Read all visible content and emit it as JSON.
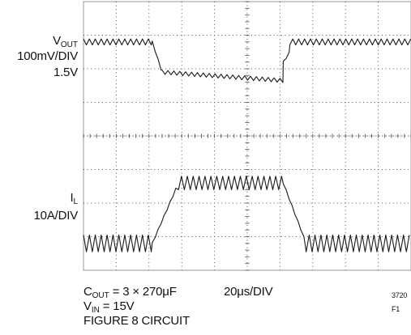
{
  "chart_data": {
    "type": "line",
    "title": "",
    "grid": true,
    "x_scale": "20μs/DIV",
    "x_divisions": 10,
    "y_divisions": 8,
    "series": [
      {
        "name": "VOUT",
        "scale": "100mV/DIV",
        "offset": "1.5V",
        "segments": [
          {
            "from_div": 0.0,
            "to_div": 2.1,
            "level_div": 6.8,
            "ripple_div": 0.18
          },
          {
            "from_div": 2.1,
            "to_div": 2.4,
            "level_start_div": 6.8,
            "level_end_div": 5.9
          },
          {
            "from_div": 2.4,
            "to_div": 6.1,
            "level_start_div": 5.9,
            "level_end_div": 5.65,
            "ripple_div": 0.12
          },
          {
            "from_div": 6.1,
            "to_div": 6.3,
            "level_start_div": 6.2,
            "level_end_div": 6.5
          },
          {
            "from_div": 6.3,
            "to_div": 10.0,
            "level_div": 6.8,
            "ripple_div": 0.18
          }
        ]
      },
      {
        "name": "IL",
        "scale": "10A/DIV",
        "segments": [
          {
            "from_div": 0.0,
            "to_div": 2.1,
            "level_div": 0.8,
            "ripple_div": 0.5
          },
          {
            "from_div": 2.1,
            "to_div": 2.9,
            "level_start_div": 0.8,
            "level_end_div": 2.6
          },
          {
            "from_div": 2.9,
            "to_div": 6.1,
            "level_div": 2.6,
            "ripple_div": 0.4
          },
          {
            "from_div": 6.1,
            "to_div": 6.8,
            "level_start_div": 2.6,
            "level_end_div": 0.8
          },
          {
            "from_div": 6.8,
            "to_div": 10.0,
            "level_div": 0.8,
            "ripple_div": 0.5
          }
        ]
      }
    ]
  },
  "labels": {
    "vout_name": "V",
    "vout_sub": "OUT",
    "vout_scale": "100mV/DIV",
    "vout_offset": "1.5V",
    "il_name": "I",
    "il_sub": "L",
    "il_scale": "10A/DIV",
    "cout_name": "C",
    "cout_sub": "OUT",
    "cout_value": " = 3 × 270μF",
    "time_div": "20μs/DIV",
    "vin_name": "V",
    "vin_sub": "IN",
    "vin_value": " = 15V",
    "figure_circuit": "FIGURE 8 CIRCUIT",
    "figure_id": "3720 F1"
  },
  "colors": {
    "trace": "#1a1a1a",
    "grid": "#555555",
    "background": "#ffffff"
  }
}
